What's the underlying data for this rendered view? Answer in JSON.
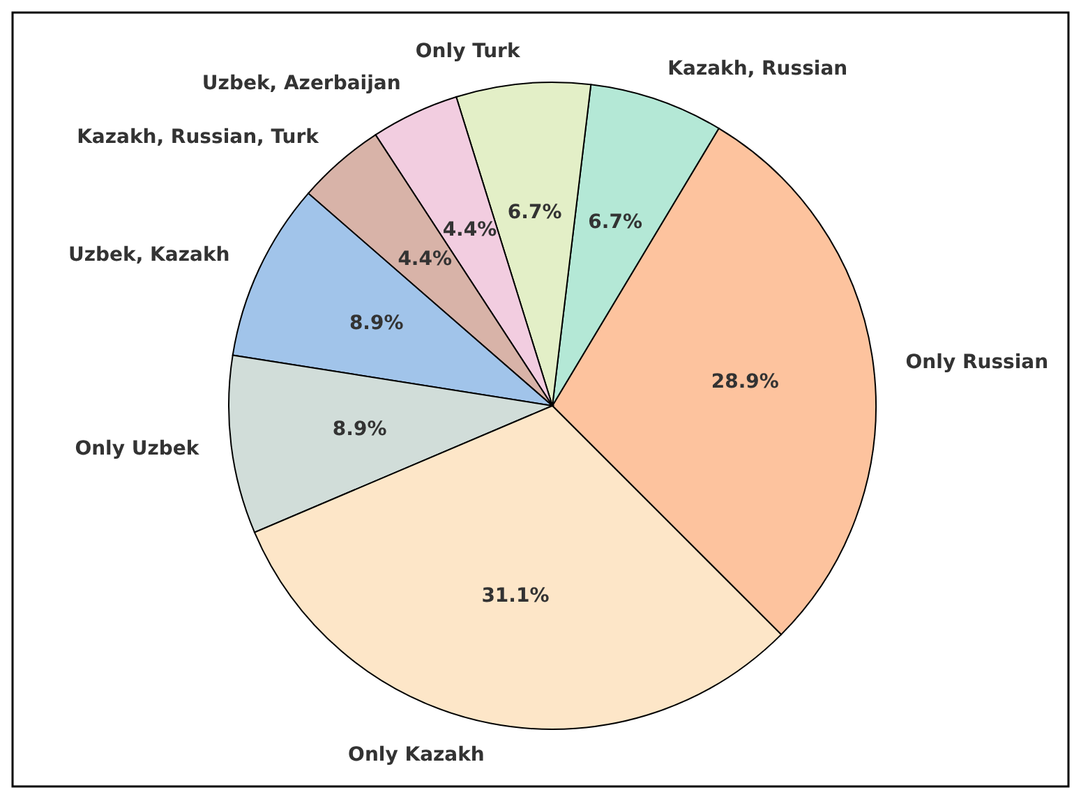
{
  "chart_data": {
    "type": "pie",
    "categories": [
      "Only Russian",
      "Kazakh, Russian",
      "Only Turk",
      "Uzbek, Azerbaijan",
      "Kazakh, Russian, Turk",
      "Uzbek, Kazakh",
      "Only Uzbek",
      "Only Kazakh"
    ],
    "values": [
      28.9,
      6.7,
      6.7,
      4.4,
      4.4,
      8.9,
      8.9,
      31.1
    ],
    "colors": [
      "#fdc39e",
      "#b4e8d6",
      "#e3efc7",
      "#f2cde0",
      "#d8b3a8",
      "#a1c4ea",
      "#d1ddd9",
      "#fde6c8"
    ],
    "value_labels": [
      "28.9%",
      "6.7%",
      "6.7%",
      "4.4%",
      "4.4%",
      "8.9%",
      "8.9%",
      "31.1%"
    ]
  }
}
